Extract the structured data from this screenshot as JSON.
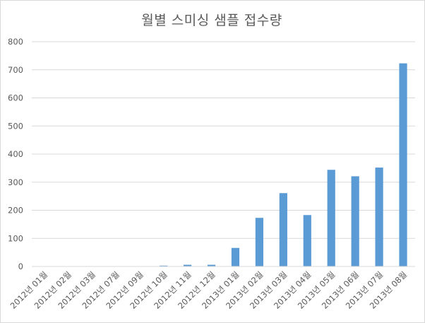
{
  "chart_data": {
    "type": "bar",
    "title": "월별 스미싱 샘플 접수량",
    "xlabel": "",
    "ylabel": "",
    "categories": [
      "2012년 01월",
      "2012년 02월",
      "2012년 03월",
      "2012년 07월",
      "2012년 09월",
      "2012년 10월",
      "2012년 11월",
      "2012년 12월",
      "2013년 01월",
      "2013년 02월",
      "2013년 03월",
      "2013년 04월",
      "2013년 05월",
      "2013년 06월",
      "2013년 07월",
      "2013년 08월"
    ],
    "values": [
      0,
      0,
      0,
      0,
      0,
      3,
      6,
      6,
      66,
      173,
      261,
      183,
      344,
      321,
      352,
      723
    ],
    "ylim": [
      0,
      800
    ],
    "yticks": [
      0,
      100,
      200,
      300,
      400,
      500,
      600,
      700,
      800
    ],
    "grid": true,
    "legend": "none",
    "colors": {
      "bar": "#5b9bd5",
      "grid": "#d9d9d9",
      "text": "#595959"
    }
  }
}
